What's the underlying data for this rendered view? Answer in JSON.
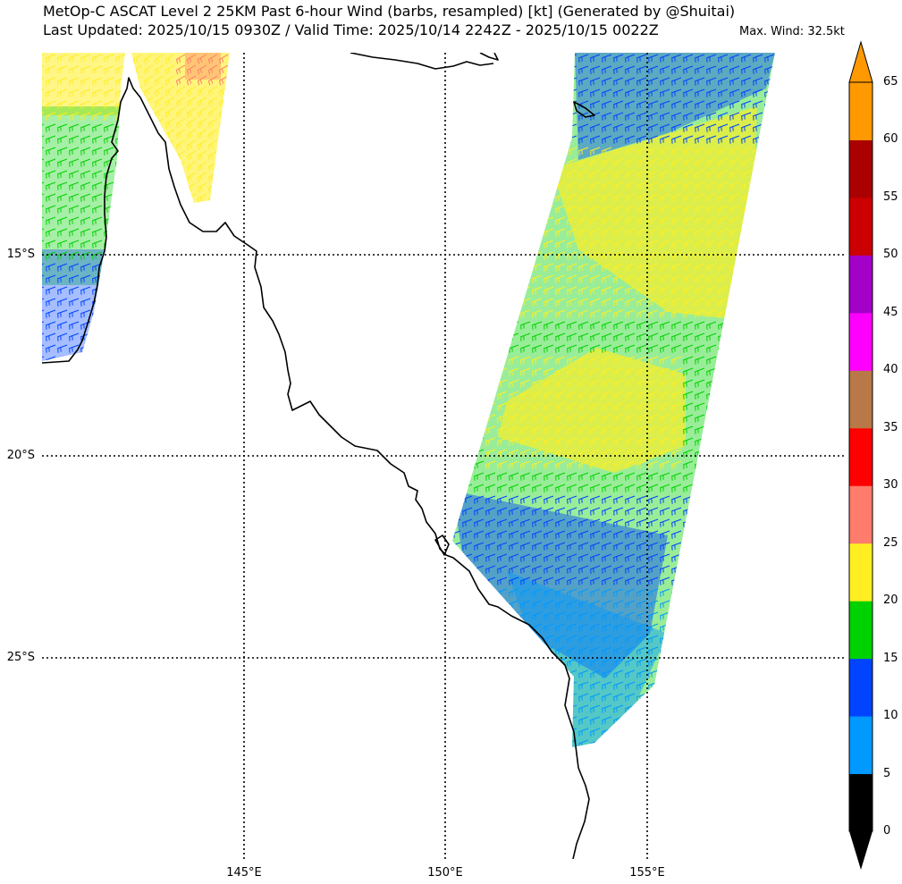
{
  "title": {
    "line1": "MetOp-C ASCAT Level 2 25KM Past 6-hour Wind (barbs, resampled) [kt] (Generated by @Shuitai)",
    "line2": "Last Updated: 2025/10/15 0930Z / Valid Time: 2025/10/14 2242Z - 2025/10/15 0022Z",
    "max_wind": "Max. Wind: 32.5kt"
  },
  "axes": {
    "lat_labels": [
      "15°S",
      "20°S",
      "25°S"
    ],
    "lon_labels": [
      "145°E",
      "150°E",
      "155°E"
    ]
  },
  "colorbar": {
    "unit": "kt",
    "ticks": [
      "0",
      "5",
      "10",
      "15",
      "20",
      "25",
      "30",
      "35",
      "40",
      "45",
      "50",
      "55",
      "60",
      "65"
    ],
    "bins": [
      {
        "range": [
          0,
          5
        ],
        "color": "#000000"
      },
      {
        "range": [
          5,
          10
        ],
        "color": "#0099ff"
      },
      {
        "range": [
          10,
          15
        ],
        "color": "#0044ff"
      },
      {
        "range": [
          15,
          20
        ],
        "color": "#00d100"
      },
      {
        "range": [
          20,
          25
        ],
        "color": "#ffee22"
      },
      {
        "range": [
          25,
          30
        ],
        "color": "#ff7b6b"
      },
      {
        "range": [
          30,
          35
        ],
        "color": "#ff0000"
      },
      {
        "range": [
          35,
          40
        ],
        "color": "#b87847"
      },
      {
        "range": [
          40,
          45
        ],
        "color": "#ff00ff"
      },
      {
        "range": [
          45,
          50
        ],
        "color": "#a300c8"
      },
      {
        "range": [
          50,
          55
        ],
        "color": "#cc0000"
      },
      {
        "range": [
          55,
          60
        ],
        "color": "#aa0000"
      },
      {
        "range": [
          60,
          65
        ],
        "color": "#ff9900"
      }
    ]
  },
  "colors": {
    "coast": "#000000",
    "grid": "#000000",
    "sky": "#0099ff",
    "blue": "#0044ff",
    "green": "#00d100",
    "yellow": "#ffee22",
    "pink": "#ff7b6b",
    "red": "#ff0000"
  }
}
